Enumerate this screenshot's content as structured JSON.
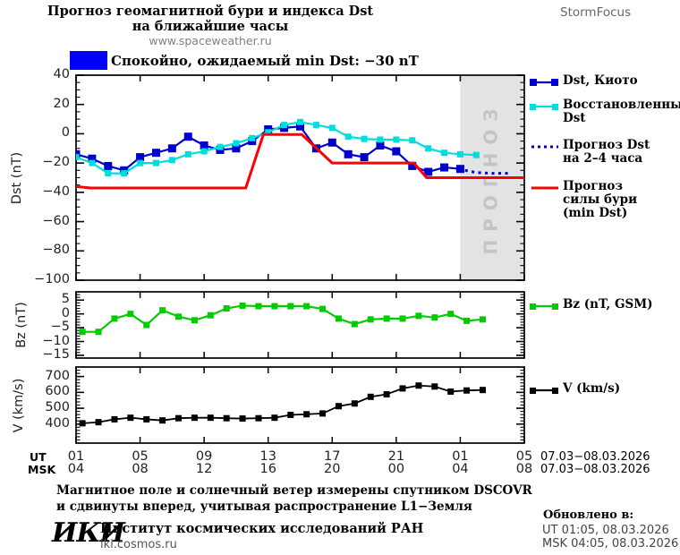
{
  "header": {
    "title_line1": "Прогноз геомагнитной бури и индекса Dst",
    "title_line2": "на ближайшие часы",
    "title_line3": "www.spaceweather.ru",
    "brand": "StormFocus"
  },
  "status_banner": {
    "color": "#0000ff",
    "text": "Спокойно, ожидаемый min Dst: −30 nT"
  },
  "forecast_band_label": "ПРОГНОЗ",
  "colors": {
    "banner": "#0000ff",
    "band": "#e3e3e3",
    "band_label": "#c4c4c4"
  },
  "legend": {
    "dst_kyoto": "Dst, Киото",
    "restored_line1": "Восстановленный",
    "restored_line2": "Dst",
    "forecast_line1": "Прогноз Dst",
    "forecast_line2": "на 2–4 часа",
    "storm_line1": "Прогноз",
    "storm_line2": "силы бури",
    "storm_line3": "(min Dst)",
    "bz": "Bz (nT, GSM)",
    "v": "V (km/s)"
  },
  "axis": {
    "ut_label": "UT",
    "msk_label": "MSK",
    "ut_ticks": [
      "01",
      "05",
      "09",
      "13",
      "17",
      "21",
      "01",
      "05"
    ],
    "msk_ticks": [
      "04",
      "08",
      "12",
      "16",
      "20",
      "00",
      "04",
      "08"
    ],
    "date_range_ut": "07.03−08.03.2026",
    "date_range_msk": "07.03−08.03.2026",
    "dst_ylabel": "Dst (nT)",
    "bz_ylabel": "Bz (nT)",
    "v_ylabel": "V (km/s)"
  },
  "footer": {
    "note_line1": "Магнитное поле и солнечный ветер измерены спутником DSCOVR",
    "note_line2": "и сдвинуты вперед, учитывая распространение L1−Земля",
    "logo": "ИКИ",
    "institute": "Институт космических исследований РАН",
    "website": "iki.cosmos.ru",
    "updated_label": "Обновлено в:",
    "updated_ut": "UT   01:05, 08.03.2026",
    "updated_msk": "MSK 04:05, 08.03.2026"
  },
  "chart_data": [
    {
      "type": "line",
      "panel": "dst",
      "ylabel": "Dst (nT)",
      "ylim": [
        -100,
        40
      ],
      "yticks": [
        40,
        20,
        0,
        -20,
        -40,
        -60,
        -80,
        -100
      ],
      "y_minor_step": 5,
      "xlim_hours": [
        0,
        28
      ],
      "x_unit": "hours since 01:00 UT, ticks every 4 h",
      "forecast_band_hours": [
        24,
        28
      ],
      "series": [
        {
          "name": "Dst, Киото",
          "color": "#0000cc",
          "marker": "square",
          "marker_size": 9,
          "line_style": "solid",
          "line_width": 2.2,
          "x": [
            0,
            1,
            2,
            3,
            4,
            5,
            6,
            7,
            8,
            9,
            10,
            11,
            12,
            13,
            14,
            15,
            16,
            17,
            18,
            19,
            20,
            21,
            22,
            23,
            24
          ],
          "values": [
            -14,
            -17,
            -22,
            -25,
            -16,
            -13,
            -10,
            -2,
            -8,
            -11,
            -10,
            -5,
            3,
            4,
            5,
            -10,
            -6,
            -14,
            -16,
            -8,
            -12,
            -22,
            -26,
            -23,
            -24
          ]
        },
        {
          "name": "Восстановленный Dst",
          "color": "#00dddd",
          "marker": "square",
          "marker_size": 7,
          "line_style": "solid",
          "line_width": 2.2,
          "x": [
            0,
            1,
            2,
            3,
            4,
            5,
            6,
            7,
            8,
            9,
            10,
            11,
            12,
            13,
            14,
            15,
            16,
            17,
            18,
            19,
            20,
            21,
            22,
            23,
            24,
            25
          ],
          "values": [
            -16,
            -20,
            -27,
            -27,
            -20,
            -20,
            -18,
            -14,
            -12,
            -9,
            -6.5,
            -3,
            1,
            6,
            8,
            6,
            4,
            -2,
            -3.5,
            -4,
            -4,
            -4.5,
            -10,
            -13,
            -14,
            -14.5
          ]
        },
        {
          "name": "Прогноз Dst на 2–4 часа",
          "color": "#0000cc",
          "marker": "none",
          "line_style": "dotted",
          "line_width": 3,
          "x": [
            24.3,
            25,
            26,
            27
          ],
          "values": [
            -25,
            -26.5,
            -27,
            -27
          ]
        },
        {
          "name": "Прогноз силы бури (min Dst)",
          "color": "#ff0000",
          "marker": "none",
          "line_style": "solid",
          "line_width": 3,
          "x": [
            0,
            0.9,
            10.6,
            11.7,
            14.1,
            16,
            21.1,
            21.9,
            28
          ],
          "values": [
            -36,
            -37,
            -37,
            -0.5,
            -0.5,
            -20,
            -20,
            -30,
            -30
          ]
        }
      ]
    },
    {
      "type": "line",
      "panel": "bz",
      "ylabel": "Bz (nT)",
      "ylim": [
        -16,
        8
      ],
      "yticks": [
        5,
        0,
        -5,
        -10,
        -15
      ],
      "y_minor_step": 1,
      "xlim_hours": [
        0,
        28
      ],
      "series": [
        {
          "name": "Bz (nT, GSM)",
          "color": "#00cc00",
          "marker": "square",
          "marker_size": 7,
          "line_style": "solid",
          "line_width": 2.2,
          "x": [
            0.4,
            1.4,
            2.4,
            3.4,
            4.4,
            5.4,
            6.4,
            7.4,
            8.4,
            9.4,
            10.4,
            11.4,
            12.4,
            13.4,
            14.4,
            15.4,
            16.4,
            17.4,
            18.4,
            19.4,
            20.4,
            21.4,
            22.4,
            23.4,
            24.4,
            25.4
          ],
          "values": [
            -6.5,
            -6.5,
            -1.7,
            0,
            -4,
            1.3,
            -1,
            -2.3,
            -0.5,
            2,
            3,
            2.8,
            2.8,
            2.8,
            2.8,
            1.8,
            -1.7,
            -3.7,
            -2,
            -1.7,
            -1.7,
            -0.7,
            -1.3,
            0,
            -2.5,
            -2
          ]
        }
      ]
    },
    {
      "type": "line",
      "panel": "v",
      "ylabel": "V (km/s)",
      "ylim": [
        280,
        760
      ],
      "yticks": [
        700,
        600,
        500,
        400
      ],
      "y_minor_step": 20,
      "xlim_hours": [
        0,
        28
      ],
      "series": [
        {
          "name": "V (km/s)",
          "color": "#000000",
          "marker": "square",
          "marker_size": 7,
          "line_style": "solid",
          "line_width": 1.8,
          "x": [
            0.4,
            1.4,
            2.4,
            3.4,
            4.4,
            5.4,
            6.4,
            7.4,
            8.4,
            9.4,
            10.4,
            11.4,
            12.4,
            13.4,
            14.4,
            15.4,
            16.4,
            17.4,
            18.4,
            19.4,
            20.4,
            21.4,
            22.4,
            23.4,
            24.4,
            25.4
          ],
          "values": [
            405,
            412,
            430,
            440,
            430,
            423,
            437,
            440,
            440,
            437,
            435,
            437,
            440,
            458,
            462,
            467,
            513,
            530,
            572,
            588,
            625,
            643,
            637,
            605,
            612,
            615
          ]
        }
      ]
    }
  ]
}
